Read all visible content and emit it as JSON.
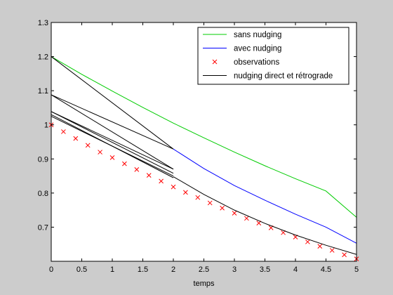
{
  "chart_data": {
    "type": "line",
    "title": "",
    "xlabel": "temps",
    "ylabel": "",
    "xlim": [
      0,
      5
    ],
    "ylim": [
      0.6,
      1.3
    ],
    "xticks": [
      0,
      0.5,
      1,
      1.5,
      2,
      2.5,
      3,
      3.5,
      4,
      4.5,
      5
    ],
    "xtick_labels": [
      "0",
      "0.5",
      "1",
      "1.5",
      "2",
      "2.5",
      "3",
      "3.5",
      "4",
      "4.5",
      "5"
    ],
    "yticks": [
      0.7,
      0.8,
      0.9,
      1.0,
      1.1,
      1.2,
      1.3
    ],
    "ytick_labels": [
      "0.7",
      "0.8",
      "0.9",
      "1",
      "1.1",
      "1.2",
      "1.3"
    ],
    "grid": false,
    "legend_position": "top-right",
    "series": [
      {
        "name": "sans nudging",
        "color": "#00cc00",
        "style": "line",
        "segments": [
          {
            "x": [
              0,
              0.5,
              1,
              1.5,
              2,
              2.5,
              3,
              3.5,
              4,
              4.5,
              5
            ],
            "y": [
              1.2,
              1.148,
              1.099,
              1.051,
              1.005,
              0.962,
              0.92,
              0.88,
              0.842,
              0.806,
              0.729
            ]
          }
        ]
      },
      {
        "name": "avec nudging",
        "color": "#0000ff",
        "style": "line",
        "segments": [
          {
            "x": [
              2,
              2.5,
              3,
              3.5,
              4,
              4.5,
              5
            ],
            "y": [
              0.929,
              0.872,
              0.822,
              0.779,
              0.738,
              0.7,
              0.653
            ]
          }
        ]
      },
      {
        "name": "observations",
        "color": "#ff0000",
        "style": "marker-x",
        "segments": [
          {
            "x": [
              0,
              0.2,
              0.4,
              0.6,
              0.8,
              1.0,
              1.2,
              1.4,
              1.6,
              1.8,
              2.0,
              2.2,
              2.4,
              2.6,
              2.8,
              3.0,
              3.2,
              3.4,
              3.6,
              3.8,
              4.0,
              4.2,
              4.4,
              4.6,
              4.8,
              5.0
            ],
            "y": [
              1.0,
              0.98,
              0.96,
              0.94,
              0.92,
              0.904,
              0.886,
              0.869,
              0.852,
              0.835,
              0.818,
              0.802,
              0.787,
              0.771,
              0.756,
              0.741,
              0.726,
              0.712,
              0.698,
              0.684,
              0.671,
              0.657,
              0.644,
              0.632,
              0.619,
              0.607
            ]
          }
        ]
      },
      {
        "name": "nudging direct et rétrograde",
        "color": "#000000",
        "style": "line",
        "segments": [
          {
            "x": [
              0,
              2
            ],
            "y": [
              1.2,
              0.929
            ]
          },
          {
            "x": [
              0,
              2
            ],
            "y": [
              1.088,
              0.87
            ]
          },
          {
            "x": [
              0,
              2
            ],
            "y": [
              1.088,
              0.929
            ]
          },
          {
            "x": [
              0,
              2
            ],
            "y": [
              1.039,
              0.87
            ]
          },
          {
            "x": [
              0,
              2
            ],
            "y": [
              1.039,
              0.858
            ]
          },
          {
            "x": [
              0,
              2
            ],
            "y": [
              1.03,
              0.845
            ]
          },
          {
            "x": [
              0,
              2
            ],
            "y": [
              1.025,
              0.85
            ]
          },
          {
            "x": [
              2,
              2.5,
              3,
              3.5,
              4,
              4.5,
              5
            ],
            "y": [
              0.848,
              0.796,
              0.75,
              0.711,
              0.677,
              0.647,
              0.62
            ]
          }
        ]
      }
    ]
  }
}
